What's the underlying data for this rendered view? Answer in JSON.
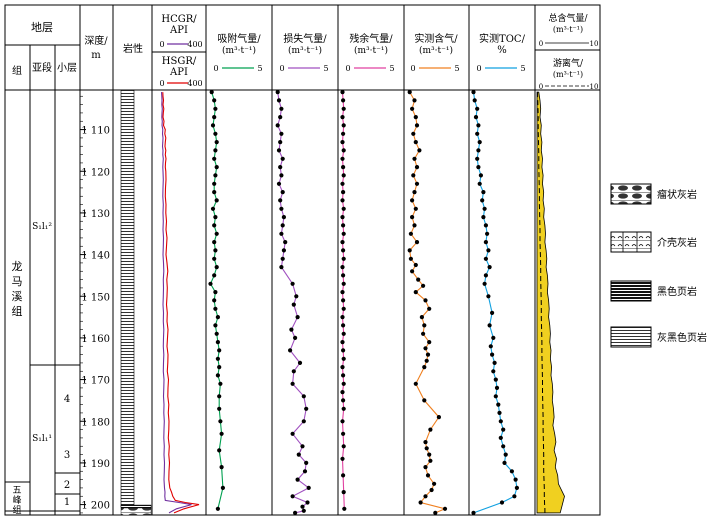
{
  "headers": {
    "stratum": "地层",
    "group": "组",
    "subsection": "亚段",
    "sublayer": "小层",
    "depth": "深度/",
    "depth_unit": "m",
    "lithology": "岩性",
    "hcgr_label": "HCGR/",
    "hcgr_unit": "API",
    "hcgr_min": "0",
    "hcgr_max": "400",
    "hsgr_label": "HSGR/",
    "hsgr_unit": "API",
    "hsgr_min": "0",
    "hsgr_max": "400",
    "adsorbed_label": "吸附气量/",
    "adsorbed_unit": "(m³·t⁻¹)",
    "adsorbed_min": "0",
    "adsorbed_max": "5",
    "lost_label": "损失气量/",
    "lost_unit": "(m³·t⁻¹)",
    "lost_min": "0",
    "lost_max": "5",
    "residual_label": "残余气量/",
    "residual_unit": "(m³·t⁻¹)",
    "residual_min": "0",
    "residual_max": "5",
    "measured_label": "实测含气/",
    "measured_unit": "(m³·t⁻¹)",
    "measured_min": "0",
    "measured_max": "5",
    "toc_label": "实测TOC/",
    "toc_unit": "%",
    "toc_min": "0",
    "toc_max": "5",
    "total_label": "总含气量/",
    "total_unit": "(m³·t⁻¹)",
    "total_min": "0",
    "total_max": "10",
    "free_label": "游离气/",
    "free_unit": "(m³·t⁻¹)",
    "free_min": "0",
    "free_max": "10"
  },
  "strata": {
    "group_longmaxi": "龙马溪组",
    "group_wufeng": "五峰组",
    "sub_s1l1_2": "S₁l₁²",
    "sub_s1l1_1": "S₁l₁¹",
    "layer_4": "4",
    "layer_3": "3",
    "layer_2": "2",
    "layer_1": "1"
  },
  "depth_ticks": [
    "1 110",
    "1 120",
    "1 130",
    "1 140",
    "1 150",
    "1 160",
    "1 170",
    "1 180",
    "1 190",
    "1 200"
  ],
  "legend": [
    {
      "label": "瘤状灰岩",
      "pattern": "nodular"
    },
    {
      "label": "介壳灰岩",
      "pattern": "shell"
    },
    {
      "label": "黑色页岩",
      "pattern": "black"
    },
    {
      "label": "灰黑色页岩",
      "pattern": "grayblack"
    }
  ],
  "chart_data": {
    "type": "line",
    "depth_range": [
      1100.5,
      1202.5
    ],
    "series": [
      {
        "name": "HCGR",
        "color": "#7030a0",
        "x": [
          60,
          62,
          64,
          62,
          66,
          64,
          62,
          66,
          64,
          70,
          68,
          72,
          70,
          68,
          72,
          70,
          74,
          72,
          70,
          72,
          74,
          72,
          70,
          74,
          72,
          74,
          72,
          76,
          74,
          72,
          76,
          78,
          74,
          76,
          74,
          72,
          76,
          74,
          78,
          76,
          74,
          78,
          76,
          74,
          80,
          78,
          76,
          80,
          78,
          82,
          80,
          78,
          82,
          80,
          84,
          82,
          80,
          84,
          88,
          86,
          90,
          200,
          300,
          180,
          120
        ],
        "depth": [
          1101,
          1102,
          1103,
          1104,
          1105,
          1106,
          1107,
          1108,
          1109,
          1110,
          1111,
          1112,
          1113,
          1114,
          1115,
          1116,
          1117,
          1118,
          1119,
          1120,
          1122,
          1124,
          1126,
          1128,
          1130,
          1132,
          1134,
          1136,
          1138,
          1140,
          1142,
          1144,
          1146,
          1148,
          1150,
          1152,
          1154,
          1156,
          1158,
          1160,
          1162,
          1164,
          1166,
          1168,
          1170,
          1172,
          1174,
          1176,
          1178,
          1180,
          1182,
          1184,
          1186,
          1188,
          1190,
          1192,
          1194,
          1196,
          1197,
          1198,
          1199,
          1199.5,
          1200,
          1201,
          1202
        ]
      },
      {
        "name": "HSGR",
        "color": "#e00000",
        "x": [
          70,
          72,
          76,
          72,
          78,
          74,
          72,
          80,
          76,
          90,
          86,
          94,
          90,
          88,
          94,
          90,
          96,
          92,
          90,
          94,
          96,
          92,
          90,
          96,
          94,
          100,
          96,
          104,
          100,
          96,
          104,
          110,
          102,
          106,
          104,
          100,
          106,
          104,
          112,
          108,
          104,
          112,
          110,
          106,
          116,
          112,
          110,
          118,
          114,
          120,
          118,
          114,
          122,
          118,
          124,
          120,
          118,
          126,
          140,
          150,
          170,
          250,
          360,
          240,
          160
        ],
        "depth": [
          1101,
          1102,
          1103,
          1104,
          1105,
          1106,
          1107,
          1108,
          1109,
          1110,
          1111,
          1112,
          1113,
          1114,
          1115,
          1116,
          1117,
          1118,
          1119,
          1120,
          1122,
          1124,
          1126,
          1128,
          1130,
          1132,
          1134,
          1136,
          1138,
          1140,
          1142,
          1144,
          1146,
          1148,
          1150,
          1152,
          1154,
          1156,
          1158,
          1160,
          1162,
          1164,
          1166,
          1168,
          1170,
          1172,
          1174,
          1176,
          1178,
          1180,
          1182,
          1184,
          1186,
          1188,
          1190,
          1192,
          1194,
          1196,
          1197,
          1198,
          1199,
          1199.5,
          1200,
          1201,
          1202
        ]
      },
      {
        "name": "吸附气量",
        "color": "#00a050",
        "x": [
          0.3,
          0.5,
          0.6,
          0.5,
          0.4,
          0.6,
          0.7,
          0.6,
          0.5,
          0.7,
          0.6,
          0.5,
          0.5,
          0.7,
          0.4,
          0.6,
          0.5,
          0.7,
          0.5,
          0.6,
          0.5,
          0.7,
          0.5,
          0.2,
          0.6,
          0.5,
          0.6,
          0.8,
          0.6,
          0.7,
          0.8,
          0.9,
          0.8,
          0.9,
          0.8,
          1.0,
          0.9,
          0.9,
          1.0,
          1.1,
          0.9,
          1.1,
          1.2,
          0.8
        ],
        "depth": [
          1101,
          1103,
          1105,
          1107,
          1109,
          1111,
          1113,
          1115,
          1117,
          1119,
          1121,
          1123,
          1125,
          1127,
          1129,
          1131,
          1133,
          1135,
          1137,
          1139,
          1141,
          1143,
          1145,
          1147,
          1149,
          1151,
          1153,
          1155,
          1157,
          1159,
          1161,
          1163,
          1165,
          1167,
          1169,
          1171,
          1174,
          1177,
          1180,
          1183,
          1187,
          1191,
          1196,
          1201
        ]
      },
      {
        "name": "损失气量",
        "color": "#a050c0",
        "x": [
          0.3,
          0.4,
          0.6,
          0.5,
          0.3,
          0.6,
          0.5,
          0.4,
          0.7,
          0.5,
          0.6,
          0.4,
          0.7,
          0.5,
          0.6,
          0.8,
          0.7,
          0.6,
          0.9,
          0.8,
          0.7,
          0.6,
          1.5,
          1.8,
          1.6,
          1.9,
          1.4,
          1.7,
          1.3,
          2.1,
          1.6,
          1.5,
          2.4,
          2.6,
          2.4,
          1.5,
          2.3,
          2.0,
          2.6,
          2.5,
          1.9,
          2.8,
          1.5,
          2.7,
          2.3,
          2.4,
          1.7
        ],
        "depth": [
          1101,
          1103,
          1105,
          1107,
          1109,
          1111,
          1113,
          1115,
          1117,
          1119,
          1121,
          1123,
          1125,
          1127,
          1129,
          1131,
          1133,
          1135,
          1137,
          1139,
          1141,
          1143,
          1147,
          1150,
          1152,
          1155,
          1158,
          1160,
          1163,
          1166,
          1168,
          1171,
          1174,
          1177,
          1180,
          1183,
          1186,
          1188,
          1190,
          1192,
          1194,
          1196,
          1198,
          1199.5,
          1200.5,
          1201.5,
          1202
        ]
      },
      {
        "name": "残余气量",
        "color": "#e040a0",
        "x": [
          0.2,
          0.25,
          0.3,
          0.2,
          0.3,
          0.25,
          0.2,
          0.3,
          0.2,
          0.25,
          0.3,
          0.2,
          0.25,
          0.2,
          0.3,
          0.2,
          0.25,
          0.3,
          0.2,
          0.25,
          0.3,
          0.2,
          0.25,
          0.3,
          0.2,
          0.25,
          0.3,
          0.2,
          0.25,
          0.3,
          0.2,
          0.25,
          0.3,
          0.2,
          0.25,
          0.3,
          0.2,
          0.25,
          0.3,
          0.2,
          0.25,
          0.3,
          0.2,
          0.25,
          0.3,
          0.35
        ],
        "depth": [
          1101,
          1103,
          1105,
          1107,
          1109,
          1111,
          1113,
          1115,
          1117,
          1119,
          1121,
          1123,
          1125,
          1127,
          1129,
          1131,
          1133,
          1135,
          1137,
          1139,
          1141,
          1143,
          1145,
          1147,
          1149,
          1151,
          1153,
          1155,
          1157,
          1159,
          1161,
          1163,
          1165,
          1167,
          1169,
          1171,
          1173,
          1175,
          1177,
          1180,
          1183,
          1186,
          1189,
          1193,
          1197,
          1201
        ]
      },
      {
        "name": "实测含气",
        "color": "#f08020",
        "x": [
          0.3,
          0.7,
          0.5,
          0.8,
          0.9,
          0.6,
          0.8,
          1.1,
          0.7,
          0.9,
          0.6,
          0.9,
          0.7,
          0.5,
          0.8,
          0.5,
          0.7,
          0.4,
          0.9,
          0.3,
          0.4,
          0.8,
          0.5,
          1.0,
          1.4,
          0.8,
          1.6,
          1.9,
          1.3,
          1.5,
          1.4,
          1.9,
          1.6,
          1.8,
          1.7,
          1.5,
          0.8,
          1.5,
          2.7,
          2.0,
          1.6,
          1.7,
          1.9,
          2.0,
          1.6,
          1.8,
          2.3,
          2.1,
          1.6,
          1.2,
          3.2,
          2.4
        ],
        "depth": [
          1101,
          1103,
          1105,
          1107,
          1109,
          1111,
          1113,
          1115,
          1117,
          1119,
          1121,
          1123,
          1125,
          1127,
          1129,
          1131,
          1133,
          1135,
          1137,
          1139,
          1141,
          1142.5,
          1144,
          1146,
          1147.5,
          1149,
          1151,
          1153,
          1155,
          1157,
          1159,
          1161,
          1162.5,
          1164,
          1165.5,
          1167,
          1171,
          1175,
          1179,
          1182,
          1185,
          1186.5,
          1188,
          1189.5,
          1191,
          1193,
          1195,
          1196.5,
          1198,
          1199.5,
          1201,
          1202
        ]
      },
      {
        "name": "实测TOC",
        "color": "#10a0e0",
        "x": [
          0.2,
          0.3,
          0.5,
          0.4,
          0.6,
          0.5,
          0.7,
          0.6,
          0.5,
          0.6,
          0.8,
          0.7,
          1.0,
          0.9,
          1.1,
          1.0,
          1.2,
          1.3,
          1.2,
          1.4,
          1.2,
          1.5,
          1.2,
          1.1,
          1.4,
          1.7,
          1.5,
          1.8,
          1.6,
          1.7,
          1.9,
          1.8,
          2.0,
          2.1,
          2.0,
          2.2,
          2.3,
          2.4,
          2.6,
          2.4,
          2.6,
          2.8,
          2.7,
          3.3,
          3.6,
          3.7,
          3.5,
          2.5,
          0.2
        ],
        "depth": [
          1101,
          1103,
          1105,
          1107,
          1109,
          1111,
          1113,
          1115,
          1117,
          1119,
          1121,
          1123,
          1125,
          1127,
          1129,
          1131,
          1133,
          1135,
          1137,
          1139,
          1141,
          1143,
          1145,
          1147,
          1150,
          1154,
          1157,
          1160,
          1162,
          1164,
          1166,
          1168,
          1170,
          1172,
          1174,
          1176,
          1178,
          1180,
          1182,
          1184,
          1186,
          1188,
          1190,
          1192,
          1194,
          1196,
          1198,
          1199.5,
          1202
        ]
      },
      {
        "name": "总含气量",
        "color": "#f0d020",
        "x": [
          0.3,
          0.5,
          0.6,
          0.5,
          0.7,
          0.6,
          0.8,
          0.7,
          0.9,
          0.8,
          1.0,
          0.9,
          1.1,
          1.0,
          1.2,
          1.1,
          1.3,
          1.4,
          1.3,
          1.5,
          1.6,
          1.5,
          1.7,
          1.8,
          1.7,
          1.9,
          2.0,
          1.9,
          2.1,
          2.2,
          2.1,
          2.3,
          2.2,
          2.4,
          2.3,
          2.5,
          2.6,
          2.5,
          2.7,
          2.8,
          2.6,
          2.9,
          3.1,
          2.8,
          3.2,
          3.0,
          3.4,
          3.5,
          4.5,
          3.8
        ],
        "depth": [
          1101,
          1103,
          1105,
          1107,
          1109,
          1111,
          1113,
          1115,
          1117,
          1119,
          1121,
          1123,
          1125,
          1127,
          1129,
          1131,
          1133,
          1135,
          1137,
          1139,
          1141,
          1143,
          1145,
          1147,
          1149,
          1151,
          1153,
          1155,
          1157,
          1159,
          1161,
          1163,
          1165,
          1167,
          1169,
          1171,
          1173,
          1175,
          1177,
          1179,
          1181,
          1183,
          1185,
          1187,
          1189,
          1191,
          1193,
          1195,
          1198,
          1202
        ]
      },
      {
        "name": "游离气",
        "color": "#000000",
        "x": [
          0.1,
          0.15,
          0.2,
          0.2,
          0.25,
          0.3,
          0.3,
          0.35,
          0.4,
          0.4,
          0.45,
          0.5,
          0.5,
          0.55,
          0.6,
          0.6,
          0.65,
          0.7,
          0.7,
          0.75,
          0.8,
          0.8,
          0.85,
          0.9,
          0.9,
          0.95,
          1.0,
          1.0,
          1.05,
          1.1,
          1.1,
          1.1,
          1.15,
          1.2,
          1.2,
          1.25,
          1.3,
          1.3
        ],
        "depth": [
          1101,
          1104,
          1107,
          1110,
          1113,
          1116,
          1119,
          1122,
          1125,
          1128,
          1131,
          1134,
          1137,
          1140,
          1143,
          1146,
          1149,
          1152,
          1155,
          1158,
          1161,
          1164,
          1167,
          1170,
          1173,
          1176,
          1179,
          1182,
          1185,
          1188,
          1190,
          1192,
          1194,
          1196,
          1198,
          1200,
          1201,
          1202
        ]
      }
    ]
  }
}
